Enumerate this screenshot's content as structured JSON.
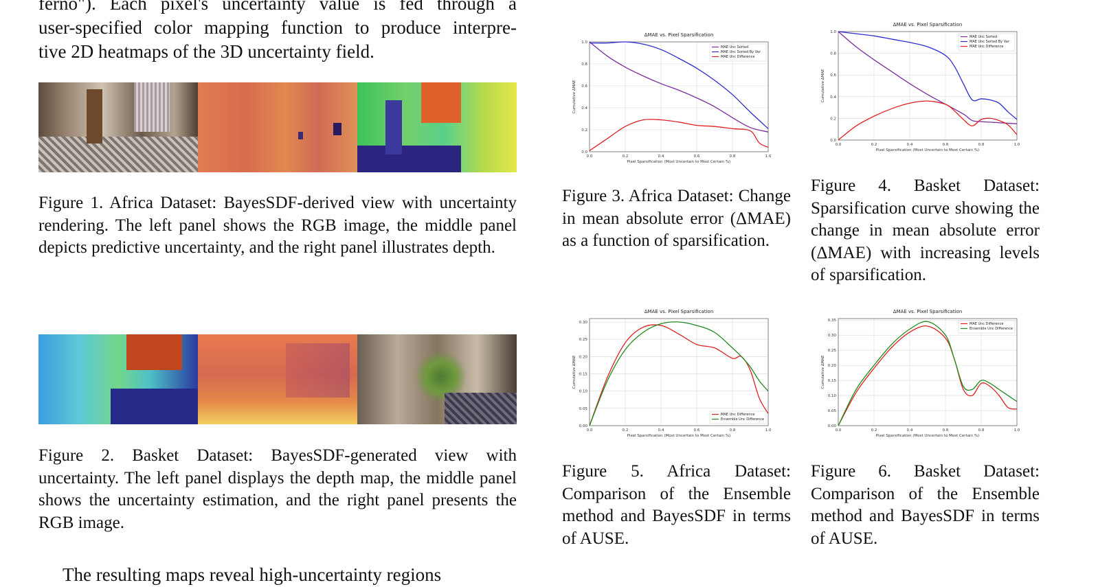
{
  "body_top": {
    "line1": "ferno\"). Each pixel's uncertainty value is fed through a",
    "line2": "user-specified color mapping function to produce interpre-",
    "line3": "tive 2D heatmaps of the 3D uncertainty field."
  },
  "body_bottom": {
    "line1": "The resulting maps reveal high-uncertainty regions"
  },
  "figures": {
    "fig1": {
      "caption": "Figure 1.  Africa Dataset: BayesSDF-derived view with uncertainty rendering. The left panel shows the RGB image, the middle panel depicts predictive uncertainty, and the right panel illustrates depth."
    },
    "fig2": {
      "caption": "Figure 2. Basket Dataset: BayesSDF-generated view with uncertainty.  The left panel displays the depth map, the middle panel shows the uncertainty estimation, and the right panel presents the RGB image."
    },
    "fig3": {
      "caption": "Figure 3.  Africa Dataset: Change in mean absolute error (ΔMAE) as a function of sparsification."
    },
    "fig4": {
      "caption": "Figure 4. Basket Dataset: Sparsification curve showing the change in mean absolute error (ΔMAE) with increasing levels of sparsification."
    },
    "fig5": {
      "caption": "Figure 5.  Africa Dataset: Comparison of the Ensemble method and BayesSDF in terms of AUSE."
    },
    "fig6": {
      "caption": "Figure 6.  Basket Dataset: Comparison of the Ensemble method and BayesSDF in terms of AUSE."
    }
  },
  "chart_data": [
    {
      "id": "fig3",
      "type": "line",
      "title": "ΔMAE vs. Pixel Sparsification",
      "xlabel": "Pixel Sparsification (Most Uncertain to Most Certain %)",
      "ylabel": "Cumulative ΔMAE",
      "xlim": [
        0,
        1
      ],
      "ylim": [
        0,
        1.0
      ],
      "xticks": [
        "0.0",
        "0.2",
        "0.4",
        "0.6",
        "0.8",
        "1.0"
      ],
      "yticks": [
        "0.0",
        "0.2",
        "0.4",
        "0.6",
        "0.8",
        "1.0"
      ],
      "legend": "top-right",
      "grid": true,
      "series": [
        {
          "name": "MAE Unc Sorted",
          "color": "#7b2d9e",
          "x": [
            0,
            0.1,
            0.2,
            0.3,
            0.4,
            0.5,
            0.6,
            0.7,
            0.8,
            0.9,
            1.0
          ],
          "y": [
            1.0,
            0.87,
            0.77,
            0.69,
            0.62,
            0.56,
            0.49,
            0.41,
            0.31,
            0.22,
            0.18
          ]
        },
        {
          "name": "MAE Unc Sorted By Var",
          "color": "#2b2bd0",
          "x": [
            0,
            0.1,
            0.2,
            0.3,
            0.4,
            0.5,
            0.6,
            0.7,
            0.8,
            0.9,
            1.0
          ],
          "y": [
            0.99,
            0.99,
            1.0,
            0.98,
            0.93,
            0.85,
            0.76,
            0.65,
            0.52,
            0.36,
            0.21
          ]
        },
        {
          "name": "MAE Unc Difference",
          "color": "#e02020",
          "x": [
            0,
            0.1,
            0.2,
            0.3,
            0.4,
            0.5,
            0.6,
            0.7,
            0.8,
            0.9,
            0.95,
            1.0
          ],
          "y": [
            0.01,
            0.12,
            0.23,
            0.29,
            0.29,
            0.27,
            0.24,
            0.23,
            0.21,
            0.19,
            0.08,
            0.04
          ]
        }
      ]
    },
    {
      "id": "fig4",
      "type": "line",
      "title": "ΔMAE vs. Pixel Sparsification",
      "xlabel": "Pixel Sparsification (Most Uncertain to Most Certain %)",
      "ylabel": "Cumulative ΔMAE",
      "xlim": [
        0,
        1
      ],
      "ylim": [
        0,
        1.0
      ],
      "xticks": [
        "0.0",
        "0.2",
        "0.4",
        "0.6",
        "0.8",
        "1.0"
      ],
      "yticks": [
        "0.0",
        "0.2",
        "0.4",
        "0.6",
        "0.8",
        "1.0"
      ],
      "legend": "top-right",
      "grid": true,
      "series": [
        {
          "name": "MAE Unc Sorted",
          "color": "#7b2d9e",
          "x": [
            0,
            0.1,
            0.2,
            0.3,
            0.4,
            0.5,
            0.6,
            0.7,
            0.75,
            0.8,
            0.9,
            1.0
          ],
          "y": [
            1.0,
            0.86,
            0.74,
            0.63,
            0.52,
            0.42,
            0.33,
            0.24,
            0.18,
            0.17,
            0.16,
            0.15
          ]
        },
        {
          "name": "MAE Unc Sorted By Var",
          "color": "#2b2bd0",
          "x": [
            0,
            0.1,
            0.2,
            0.3,
            0.4,
            0.5,
            0.6,
            0.65,
            0.7,
            0.75,
            0.8,
            0.85,
            0.9,
            0.95,
            1.0
          ],
          "y": [
            1.0,
            0.98,
            0.96,
            0.93,
            0.9,
            0.86,
            0.78,
            0.68,
            0.52,
            0.37,
            0.38,
            0.37,
            0.34,
            0.26,
            0.19
          ]
        },
        {
          "name": "MAE Unc Difference",
          "color": "#e02020",
          "x": [
            0,
            0.1,
            0.2,
            0.3,
            0.4,
            0.5,
            0.6,
            0.65,
            0.7,
            0.75,
            0.8,
            0.85,
            0.9,
            0.95,
            1.0
          ],
          "y": [
            0.0,
            0.13,
            0.22,
            0.29,
            0.34,
            0.36,
            0.33,
            0.27,
            0.19,
            0.13,
            0.19,
            0.2,
            0.18,
            0.14,
            0.05
          ]
        }
      ]
    },
    {
      "id": "fig5",
      "type": "line",
      "title": "ΔMAE vs. Pixel Sparsification",
      "xlabel": "Pixel Sparsification (Most Uncertain to Most Certain %)",
      "ylabel": "Cumulative ΔMAE",
      "xlim": [
        0,
        1
      ],
      "ylim": [
        0,
        0.31
      ],
      "xticks": [
        "0.0",
        "0.2",
        "0.4",
        "0.6",
        "0.8",
        "1.0"
      ],
      "yticks": [
        "0.00",
        "0.05",
        "0.10",
        "0.15",
        "0.20",
        "0.25",
        "0.30"
      ],
      "legend": "bottom-right",
      "grid": true,
      "series": [
        {
          "name": "MAE Unc Difference",
          "color": "#e02020",
          "x": [
            0,
            0.1,
            0.2,
            0.3,
            0.4,
            0.5,
            0.6,
            0.7,
            0.8,
            0.85,
            0.9,
            0.95,
            1.0
          ],
          "y": [
            0.0,
            0.14,
            0.24,
            0.285,
            0.29,
            0.265,
            0.235,
            0.225,
            0.195,
            0.2,
            0.16,
            0.08,
            0.035
          ]
        },
        {
          "name": "Ensemble Unc Difference",
          "color": "#1e8a1e",
          "x": [
            0,
            0.1,
            0.2,
            0.3,
            0.4,
            0.5,
            0.6,
            0.7,
            0.8,
            0.85,
            0.9,
            0.95,
            1.0
          ],
          "y": [
            0.0,
            0.13,
            0.22,
            0.27,
            0.295,
            0.3,
            0.29,
            0.27,
            0.225,
            0.2,
            0.17,
            0.13,
            0.1
          ]
        }
      ]
    },
    {
      "id": "fig6",
      "type": "line",
      "title": "ΔMAE vs. Pixel Sparsification",
      "xlabel": "Pixel Sparsification (Most Uncertain to Most Certain %)",
      "ylabel": "Cumulative ΔMAE",
      "xlim": [
        0,
        1
      ],
      "ylim": [
        0,
        0.355
      ],
      "xticks": [
        "0.0",
        "0.2",
        "0.4",
        "0.6",
        "0.8",
        "1.0"
      ],
      "yticks": [
        "0.00",
        "0.05",
        "0.10",
        "0.15",
        "0.20",
        "0.25",
        "0.30",
        "0.35"
      ],
      "legend": "top-right",
      "grid": true,
      "series": [
        {
          "name": "MAE Unc Difference",
          "color": "#e02020",
          "x": [
            0,
            0.1,
            0.2,
            0.3,
            0.4,
            0.5,
            0.6,
            0.65,
            0.7,
            0.75,
            0.8,
            0.85,
            0.9,
            0.95,
            1.0
          ],
          "y": [
            0.0,
            0.11,
            0.19,
            0.26,
            0.31,
            0.33,
            0.29,
            0.22,
            0.12,
            0.1,
            0.14,
            0.13,
            0.1,
            0.06,
            0.055
          ]
        },
        {
          "name": "Ensemble Unc Difference",
          "color": "#1e8a1e",
          "x": [
            0,
            0.1,
            0.2,
            0.3,
            0.4,
            0.5,
            0.6,
            0.65,
            0.7,
            0.75,
            0.8,
            0.85,
            0.9,
            0.95,
            1.0
          ],
          "y": [
            0.0,
            0.12,
            0.2,
            0.27,
            0.32,
            0.345,
            0.3,
            0.22,
            0.13,
            0.12,
            0.15,
            0.14,
            0.12,
            0.1,
            0.08
          ]
        }
      ]
    }
  ]
}
